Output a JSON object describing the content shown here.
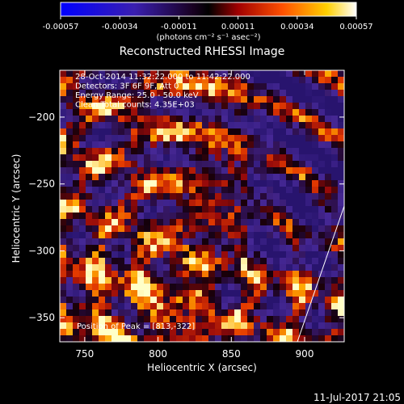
{
  "colorbar": {
    "ticks": [
      "-0.00057",
      "-0.00034",
      "-0.00011",
      "0.00011",
      "0.00034",
      "0.00057"
    ],
    "unit_label": "(photons cm⁻² s⁻¹ asec⁻²)"
  },
  "chart_data": {
    "type": "heatmap",
    "title": "Reconstructed RHESSI Image",
    "xlabel": "Heliocentric X (arcsec)",
    "ylabel": "Heliocentric Y (arcsec)",
    "xlim": [
      733,
      927
    ],
    "ylim": [
      -368,
      -165
    ],
    "x_ticks": [
      750,
      800,
      850,
      900
    ],
    "y_ticks": [
      -200,
      -250,
      -300,
      -350
    ],
    "color_range": [
      -0.00057,
      0.00057
    ],
    "annotations": [
      "28-Oct-2014 11:32:22.000 to 11:42:22.000",
      "Detectors: 3F 6F 9F, Att 0",
      "Energy Range: 25.0 - 50.0 keV",
      "Clean    Total counts: 4.35E+03"
    ],
    "peak_text": "Position of Peak = [813,-322]",
    "peak_position": [
      813,
      -322
    ]
  },
  "footer": {
    "timestamp": "11-Jul-2017 21:05"
  }
}
